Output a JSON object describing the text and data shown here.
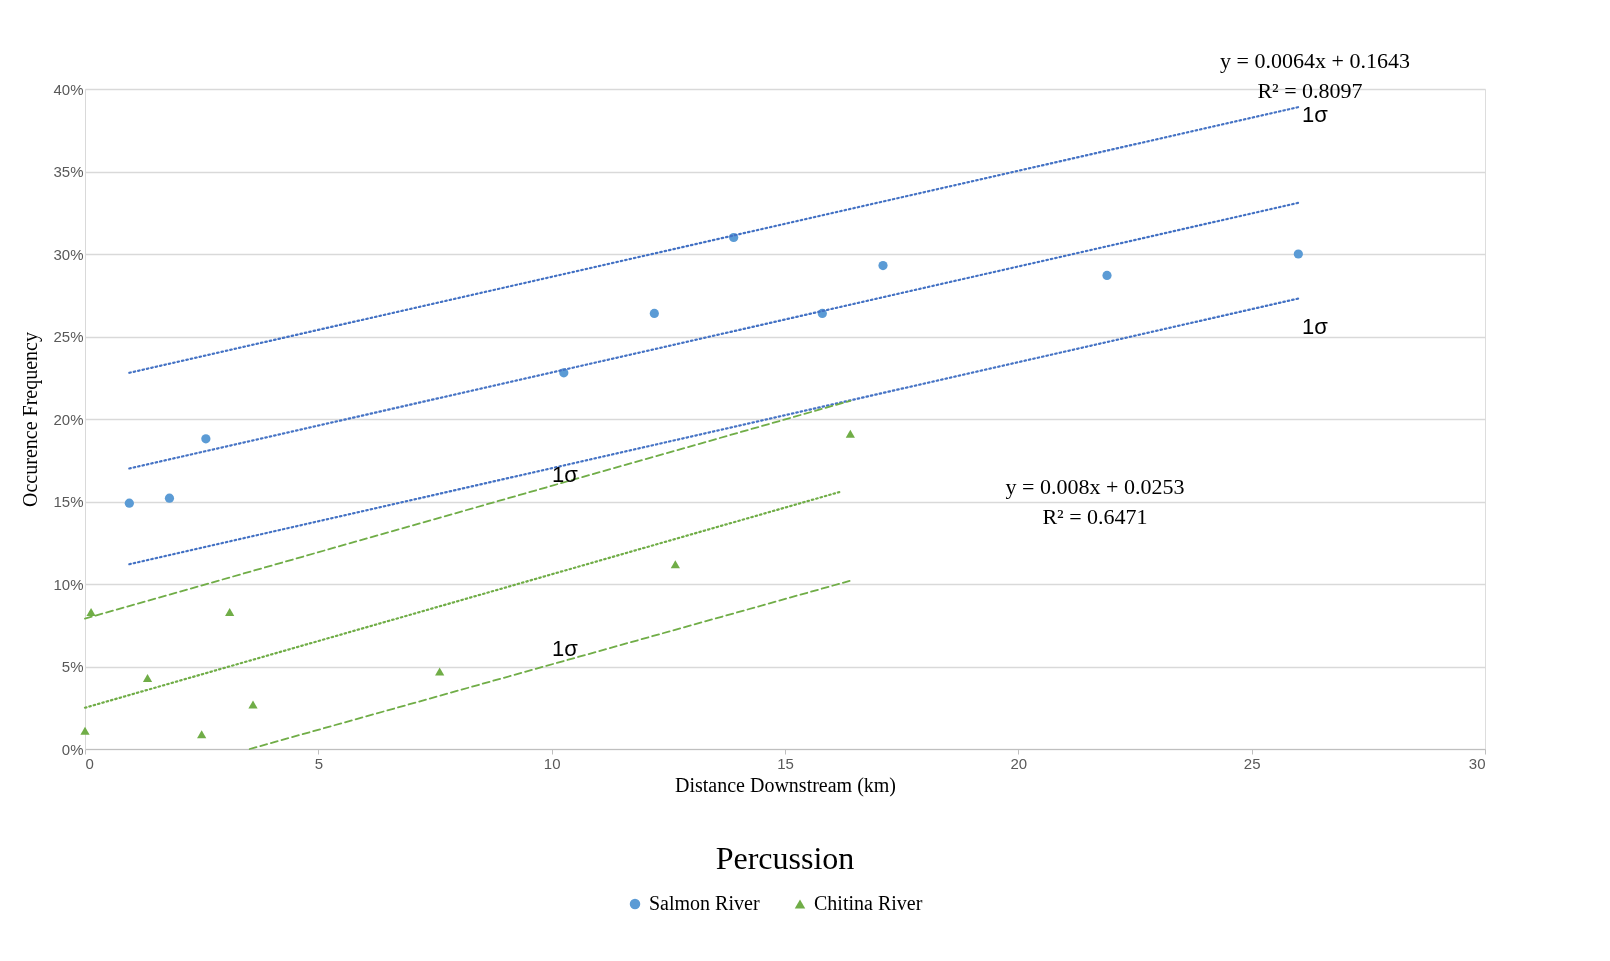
{
  "chart_data": {
    "type": "scatter",
    "title": "Percussion",
    "xlabel": "Distance Downstream (km)",
    "ylabel": "Occurence Frequency",
    "xlim": [
      0,
      30
    ],
    "xticks": [
      0,
      5,
      10,
      15,
      20,
      25,
      30
    ],
    "ylim": [
      0,
      40
    ],
    "yticks": [
      {
        "value": 0,
        "label": "0%"
      },
      {
        "value": 5,
        "label": "5%"
      },
      {
        "value": 10,
        "label": "10%"
      },
      {
        "value": 15,
        "label": "15%"
      },
      {
        "value": 20,
        "label": "20%"
      },
      {
        "value": 25,
        "label": "25%"
      },
      {
        "value": 30,
        "label": "30%"
      },
      {
        "value": 35,
        "label": "35%"
      },
      {
        "value": 40,
        "label": "40%"
      }
    ],
    "grid": "y",
    "legend": "bottom",
    "series": [
      {
        "name": "Salmon River",
        "marker": "circle",
        "color": "#5b9bd5",
        "x": [
          0.95,
          1.81,
          2.59,
          10.26,
          12.2,
          13.9,
          15.8,
          17.1,
          21.9,
          26.0
        ],
        "values": [
          14.9,
          15.2,
          18.8,
          22.8,
          26.4,
          31.0,
          26.4,
          29.3,
          28.7,
          30.0
        ]
      },
      {
        "name": "Chitina River",
        "marker": "triangle",
        "color": "#70ad47",
        "x": [
          0,
          0.13,
          1.34,
          2.5,
          3.1,
          3.6,
          7.6,
          12.65,
          16.4
        ],
        "values": [
          1.1,
          8.3,
          4.3,
          0.9,
          8.3,
          2.7,
          4.7,
          11.2,
          19.1
        ]
      },
      {
        "type": "line",
        "line_style": "dotted",
        "color": "#4472c4",
        "x": [
          0.95,
          26.0
        ],
        "values": [
          17.0,
          33.1
        ]
      },
      {
        "type": "line",
        "line_style": "dotted",
        "color": "#4472c4",
        "x": [
          0.95,
          26.0
        ],
        "values": [
          22.8,
          38.9
        ]
      },
      {
        "type": "line",
        "line_style": "dotted",
        "color": "#4472c4",
        "x": [
          0.95,
          26.0
        ],
        "values": [
          11.2,
          27.3
        ]
      },
      {
        "type": "line",
        "line_style": "dotted",
        "color": "#70ad47",
        "x": [
          0,
          16.2
        ],
        "values": [
          2.5,
          15.6
        ]
      },
      {
        "type": "line",
        "line_style": "dashed",
        "color": "#70ad47",
        "x": [
          0,
          16.4
        ],
        "values": [
          7.9,
          21.1
        ]
      },
      {
        "type": "line",
        "line_style": "dashed",
        "color": "#70ad47",
        "x": [
          3.53,
          16.4
        ],
        "values": [
          0,
          10.2
        ]
      }
    ],
    "annotations": [
      "1σ",
      "1σ",
      "1σ",
      "1σ",
      "y = 0.0064x + 0.1643",
      "R² = 0.8097",
      "y = 0.008x + 0.0253",
      "R² = 0.6471"
    ]
  }
}
